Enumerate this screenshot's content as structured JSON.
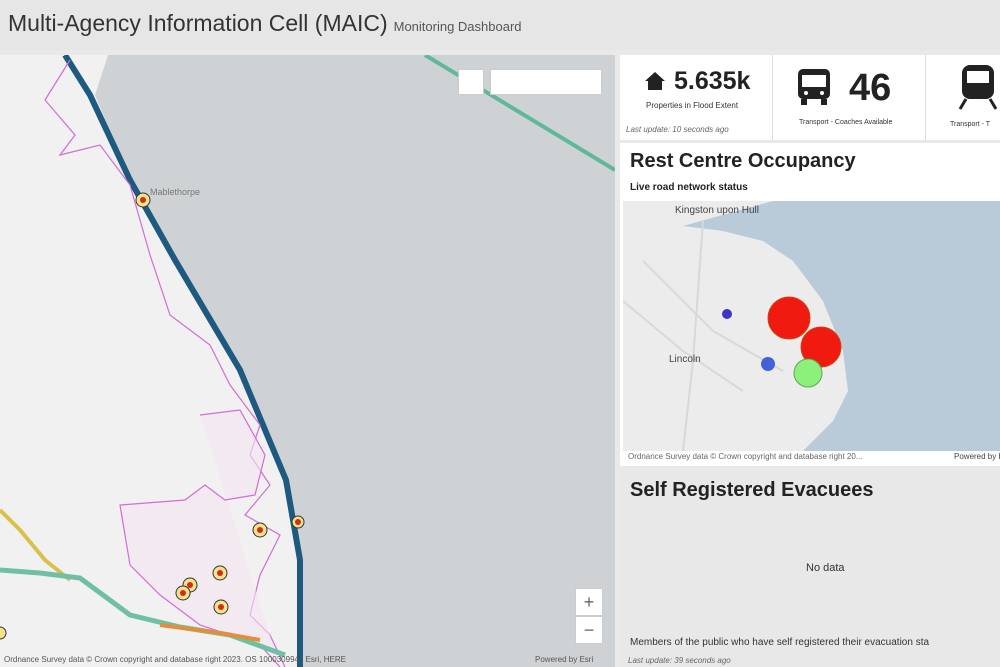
{
  "header": {
    "title": "Multi-Agency Information Cell (MAIC)",
    "subtitle": "Monitoring Dashboard"
  },
  "map": {
    "labels": [
      "Mablethorpe"
    ],
    "attribution": "Ordnance Survey data © Crown copyright and database right 2023. OS 100030994 | Esri, HERE",
    "powered_by": "Powered by Esri",
    "zoom_in": "+",
    "zoom_out": "−"
  },
  "indicators": [
    {
      "value": "5.635k",
      "label": "Properties in Flood Extent",
      "last_update": "Last update: 10 seconds ago"
    },
    {
      "value": "46",
      "label": "Transport - Coaches Available"
    },
    {
      "label": "Transport - T"
    }
  ],
  "rest_centre": {
    "title": "Rest Centre Occupancy",
    "subtitle": "Live road network status",
    "labels": [
      "Kingston upon Hull",
      "Lincoln"
    ],
    "attribution": "Ordnance Survey data © Crown copyright and database right 20...",
    "powered_by": "Powered by Esri"
  },
  "self_registered": {
    "title": "Self Registered Evacuees",
    "message": "No data",
    "description": "Members of the public who have self registered their evacuation sta",
    "last_update": "Last update: 39 seconds ago"
  }
}
